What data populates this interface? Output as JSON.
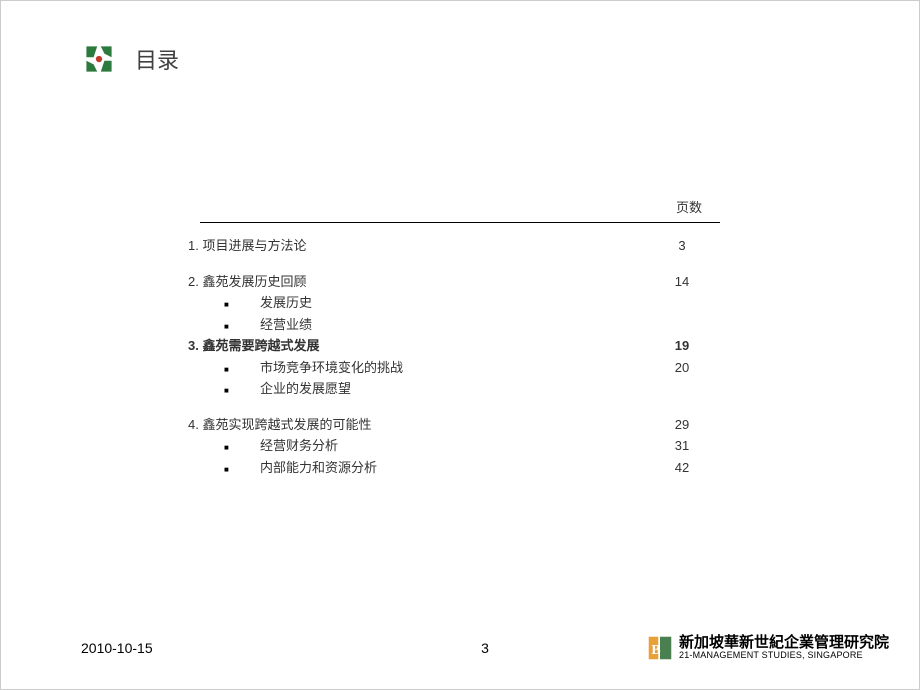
{
  "header": {
    "title": "目录",
    "logo_colors": {
      "green": "#2d7a3e",
      "red": "#c0392b"
    }
  },
  "toc": {
    "page_header": "页数",
    "sections": [
      {
        "main": {
          "label": "1. 项目进展与方法论",
          "page": "3",
          "bold": false
        },
        "items": []
      },
      {
        "main": {
          "label": "2. 鑫苑发展历史回顾",
          "page": "14",
          "bold": false
        },
        "items": [
          {
            "label": "发展历史",
            "page": ""
          },
          {
            "label": "经营业绩",
            "page": ""
          }
        ]
      },
      {
        "main": {
          "label": "3. 鑫苑需要跨越式发展",
          "page": "19",
          "bold": true
        },
        "items": [
          {
            "label": "市场竞争环境变化的挑战",
            "page": "20"
          },
          {
            "label": "企业的发展愿望",
            "page": ""
          }
        ],
        "no_gap_before": true
      },
      {
        "main": {
          "label": "4. 鑫苑实现跨越式发展的可能性",
          "page": "29",
          "bold": false
        },
        "items": [
          {
            "label": "经营财务分析",
            "page": "31"
          },
          {
            "label": "内部能力和资源分析",
            "page": "42"
          }
        ]
      }
    ]
  },
  "footer": {
    "date": "2010-10-15",
    "page_number": "3",
    "org_cn": "新加坡華新世紀企業管理研究院",
    "org_en": "21-MANAGEMENT STUDIES, SINGAPORE",
    "logo_colors": {
      "orange": "#e8a03a",
      "green": "#4a8050"
    }
  }
}
